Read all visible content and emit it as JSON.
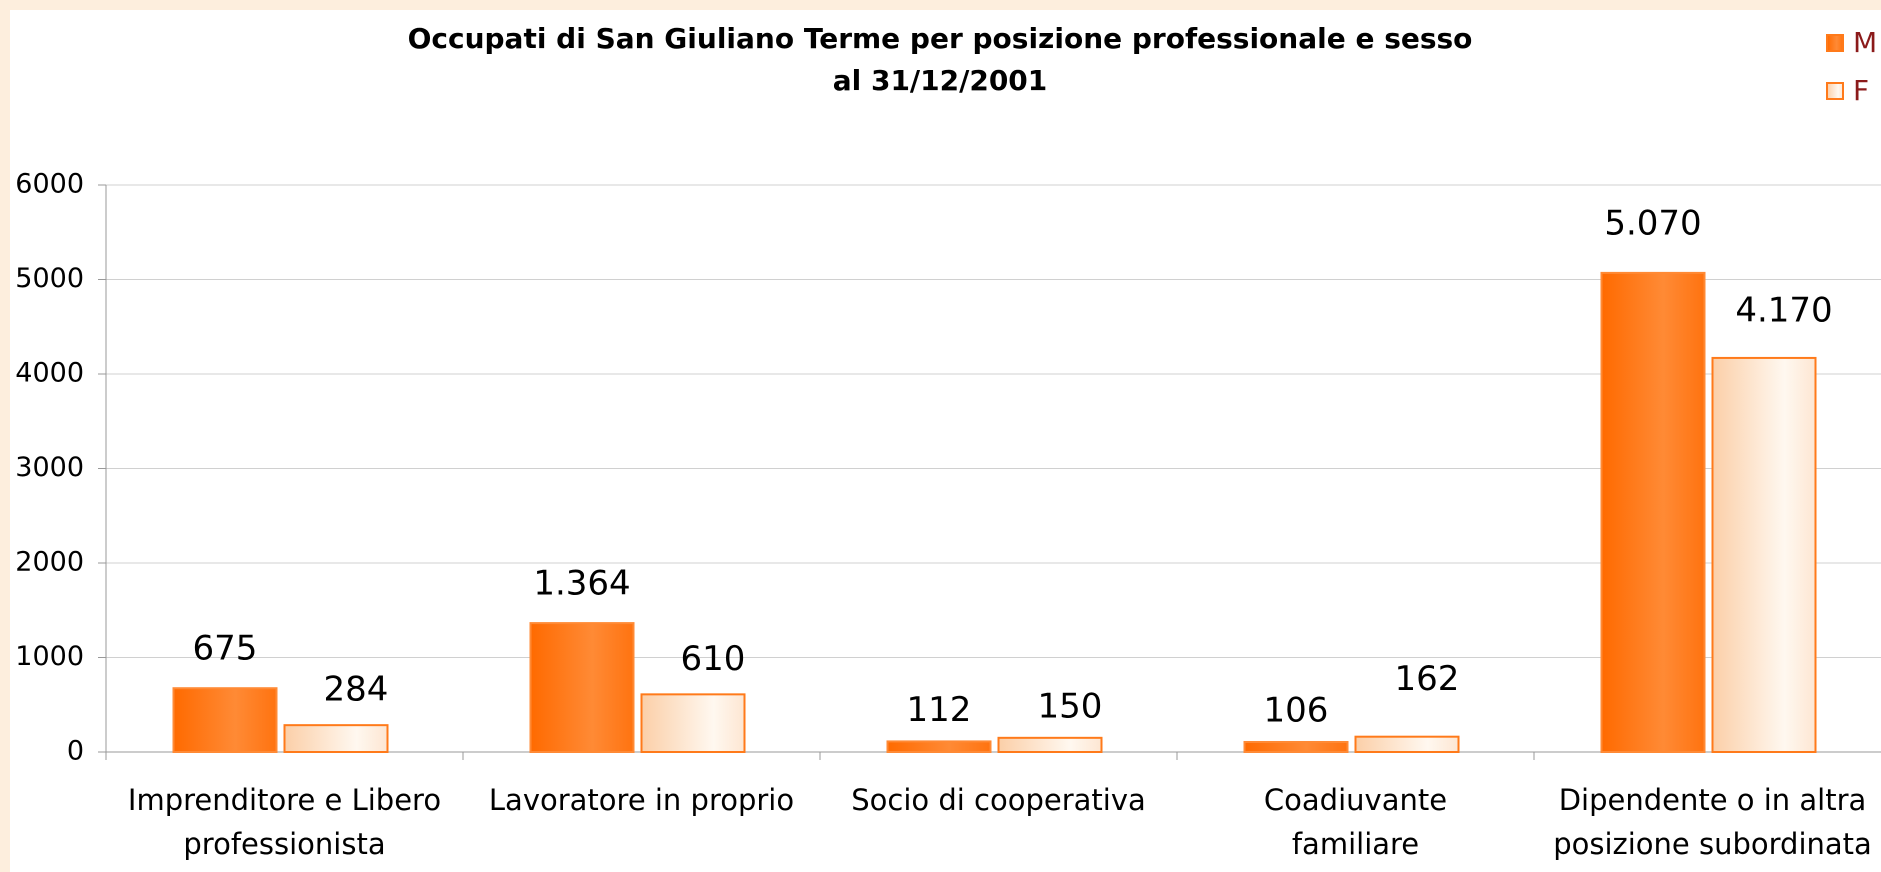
{
  "chart_data": {
    "type": "bar",
    "title": "Occupati di San Giuliano Terme per posizione professionale e sesso",
    "subtitle": "al 31/12/2001",
    "categories": [
      [
        "Imprenditore e Libero",
        "professionista"
      ],
      [
        "Lavoratore in proprio"
      ],
      [
        "Socio di cooperativa"
      ],
      [
        "Coadiuvante",
        "familiare"
      ],
      [
        "Dipendente o in altra",
        "posizione subordinata"
      ]
    ],
    "series": [
      {
        "name": "M",
        "color": "#ff6a00",
        "values": [
          675,
          1364,
          112,
          106,
          5070
        ],
        "value_labels": [
          "675",
          "1.364",
          "112",
          "106",
          "5.070"
        ]
      },
      {
        "name": "F",
        "color": "#fde0c6",
        "values": [
          284,
          610,
          150,
          162,
          4170
        ],
        "value_labels": [
          "284",
          "610",
          "150",
          "162",
          "4.170"
        ]
      }
    ],
    "ylim": [
      0,
      6000
    ],
    "yticks": [
      0,
      1000,
      2000,
      3000,
      4000,
      5000,
      6000
    ],
    "grid": true,
    "legend": "top-right"
  }
}
